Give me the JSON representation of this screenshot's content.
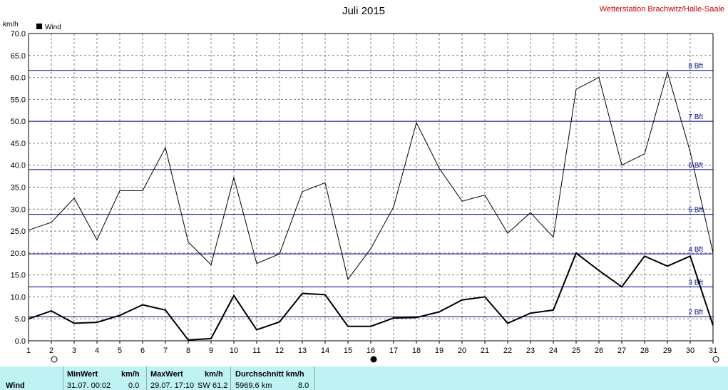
{
  "header": {
    "title": "Juli 2015",
    "station": "Wetterstation Brachwitz/Halle-Saale",
    "unit": "km/h",
    "legend_label": "Wind"
  },
  "colors": {
    "grid": "#808080",
    "bft_line": "#00008b",
    "series": "#000000",
    "footer_bg": "#bff3f3",
    "station": "#cc0000"
  },
  "chart_data": {
    "type": "line",
    "title": "Juli 2015",
    "ylabel": "km/h",
    "ylim": [
      0,
      70
    ],
    "yticks": [
      "0.0",
      "5.0",
      "10.0",
      "15.0",
      "20.0",
      "25.0",
      "30.0",
      "35.0",
      "40.0",
      "45.0",
      "50.0",
      "55.0",
      "60.0",
      "65.0",
      "70.0"
    ],
    "x": [
      1,
      2,
      3,
      4,
      5,
      6,
      7,
      8,
      9,
      10,
      11,
      12,
      13,
      14,
      15,
      16,
      17,
      18,
      19,
      20,
      21,
      22,
      23,
      24,
      25,
      26,
      27,
      28,
      29,
      30,
      31
    ],
    "xlim": [
      1,
      31
    ],
    "grid": true,
    "legend": "top-left",
    "series": [
      {
        "name": "Wind",
        "role": "mean",
        "values": [
          5.0,
          6.8,
          4.0,
          4.2,
          5.8,
          8.2,
          7.0,
          0.2,
          0.5,
          10.3,
          2.5,
          4.3,
          10.8,
          10.5,
          3.3,
          3.3,
          5.2,
          5.3,
          6.6,
          9.3,
          10.0,
          4.0,
          6.3,
          7.0,
          20.0,
          16.0,
          12.3,
          19.3,
          17.0,
          19.3,
          3.5
        ]
      },
      {
        "name": "",
        "role": "gust",
        "values": [
          25.2,
          27.0,
          32.5,
          23.0,
          34.2,
          34.2,
          44.0,
          22.5,
          17.3,
          37.2,
          17.6,
          19.8,
          34.0,
          36.0,
          14.0,
          21.0,
          30.5,
          49.7,
          39.3,
          31.8,
          33.2,
          24.5,
          29.2,
          23.6,
          57.3,
          60.0,
          40.0,
          42.6,
          61.2,
          43.0,
          20.0
        ]
      }
    ],
    "beaufort_lines": [
      {
        "label": "2 Bft",
        "value": 5.5
      },
      {
        "label": "3 Bft",
        "value": 12.3
      },
      {
        "label": "4 Bft",
        "value": 19.8
      },
      {
        "label": "5 Bft",
        "value": 28.8
      },
      {
        "label": "6 Bft",
        "value": 39.0
      },
      {
        "label": "7 Bft",
        "value": 50.0
      },
      {
        "label": "8 Bft",
        "value": 61.6
      }
    ],
    "moon_phases": [
      {
        "day": 2,
        "phase": "full"
      },
      {
        "day": 16,
        "phase": "new"
      },
      {
        "day": 31,
        "phase": "full"
      }
    ]
  },
  "footer": {
    "row_label": "Wind",
    "min_header": "MinWert",
    "min_unit": "km/h",
    "min_time": "31.07.  00:02",
    "min_value": "0.0",
    "max_header": "MaxWert",
    "max_unit": "km/h",
    "max_time": "29.07.  17:10",
    "max_dir": "SW",
    "max_value": "61.2",
    "avg_header": "Durchschnitt km/h",
    "avg_distance": "5969.6 km",
    "avg_value": "8.0"
  }
}
